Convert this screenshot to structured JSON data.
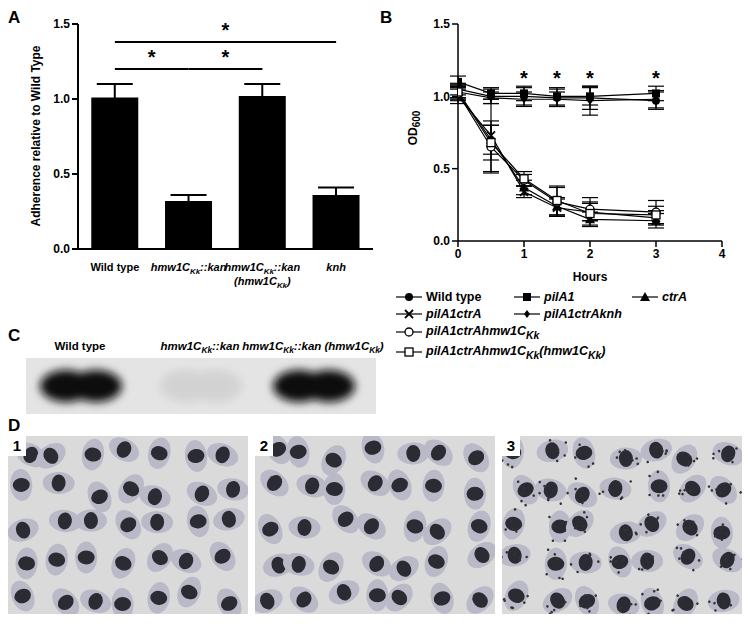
{
  "chart_data": [
    {
      "panel_label": "A",
      "type": "bar",
      "categories": [
        "Wild type",
        "hmw1CKk::kan",
        "hmw1CKk::kan (hmw1CKk)",
        "knh"
      ],
      "values": [
        1.01,
        0.32,
        1.02,
        0.36
      ],
      "errors": [
        0.09,
        0.04,
        0.08,
        0.05
      ],
      "color": "#000000",
      "y_label": "Adherence relative to Wild Type",
      "ylim": [
        0,
        1.5
      ],
      "yticks": [
        {
          "value": 0,
          "label": "0.0"
        },
        {
          "value": 0.5,
          "label": "0.5"
        },
        {
          "value": 1,
          "label": "1.0"
        },
        {
          "value": 1.5,
          "label": "1.5"
        }
      ],
      "grid": false,
      "significance": [
        {
          "from": "Wild type",
          "to": "hmw1CKk::kan",
          "y": 1.2,
          "label": "*"
        },
        {
          "from": "hmw1CKk::kan",
          "to": "hmw1CKk::kan (hmw1CKk)",
          "y": 1.2,
          "label": "*"
        },
        {
          "from": "Wild type",
          "to": "knh",
          "y": 1.38,
          "label": "*"
        }
      ]
    },
    {
      "panel_label": "B",
      "type": "line",
      "x": [
        0,
        0.5,
        1,
        1.5,
        2,
        3
      ],
      "x_label": "Hours",
      "y_label": "OD600",
      "xlim": [
        0,
        4
      ],
      "xticks": [
        0,
        1,
        2,
        3,
        4
      ],
      "ylim": [
        0,
        1.5
      ],
      "yticks": [
        {
          "value": 0,
          "label": "0.0"
        },
        {
          "value": 0.5,
          "label": "0.5"
        },
        {
          "value": 1,
          "label": "1.0"
        },
        {
          "value": 1.5,
          "label": "1.5"
        }
      ],
      "grid": false,
      "legend": "bottom",
      "series": [
        {
          "name": "Wild type",
          "color": "#000000",
          "marker": "circle",
          "values": [
            1.05,
            1.0,
            1.0,
            0.99,
            0.99,
            0.97
          ],
          "errors": [
            0.04,
            0.05,
            0.06,
            0.06,
            0.08,
            0.06
          ]
        },
        {
          "name": "pilA1",
          "color": "#000000",
          "marker": "square",
          "values": [
            1.1,
            1.02,
            1.02,
            1.0,
            1.0,
            1.02
          ],
          "errors": [
            0.04,
            0.04,
            0.05,
            0.06,
            0.06,
            0.05
          ]
        },
        {
          "name": "ctrA",
          "color": "#000000",
          "marker": "triangle",
          "values": [
            1.03,
            0.7,
            0.37,
            0.24,
            0.15,
            0.14
          ],
          "errors": [
            0.05,
            0.1,
            0.05,
            0.06,
            0.05,
            0.05
          ]
        },
        {
          "name": "pilA1ctrA",
          "color": "#000000",
          "marker": "x",
          "values": [
            1.0,
            0.73,
            0.34,
            0.23,
            0.2,
            0.16
          ],
          "errors": [
            0.05,
            0.25,
            0.04,
            0.06,
            0.06,
            0.05
          ]
        },
        {
          "name": "pilA1ctrAknh",
          "color": "#000000",
          "marker": "diamond",
          "values": [
            1.03,
            0.99,
            0.98,
            0.98,
            0.97,
            0.98
          ],
          "errors": [
            0.04,
            0.04,
            0.05,
            0.05,
            0.1,
            0.06
          ]
        },
        {
          "name": "pilA1ctrAhmw1CKk",
          "color": "#000000",
          "marker": "open_circle",
          "values": [
            1.02,
            0.65,
            0.42,
            0.27,
            0.22,
            0.2
          ],
          "errors": [
            0.05,
            0.18,
            0.04,
            0.1,
            0.08,
            0.08
          ]
        },
        {
          "name": "pilA1ctrAhmw1CKk(hmw1CKk)",
          "color": "#000000",
          "marker": "open_square",
          "values": [
            1.03,
            0.68,
            0.43,
            0.28,
            0.19,
            0.18
          ],
          "errors": [
            0.04,
            0.12,
            0.05,
            0.1,
            0.08,
            0.06
          ]
        }
      ],
      "annotations": [
        {
          "x": 1,
          "y": 1.13,
          "text": "*"
        },
        {
          "x": 1.5,
          "y": 1.13,
          "text": "*"
        },
        {
          "x": 2,
          "y": 1.13,
          "text": "*"
        },
        {
          "x": 3,
          "y": 1.13,
          "text": "*"
        }
      ]
    }
  ],
  "panels": [
    {
      "panel_label": "C",
      "type": "western_blot",
      "lanes": [
        "Wild type",
        "hmw1CKk::kan",
        "hmw1CKk::kan (hmw1CKk)"
      ],
      "band_intensity": [
        1,
        0.08,
        1
      ]
    },
    {
      "panel_label": "D",
      "type": "micrographs",
      "images": [
        "1",
        "2",
        "3"
      ]
    }
  ]
}
